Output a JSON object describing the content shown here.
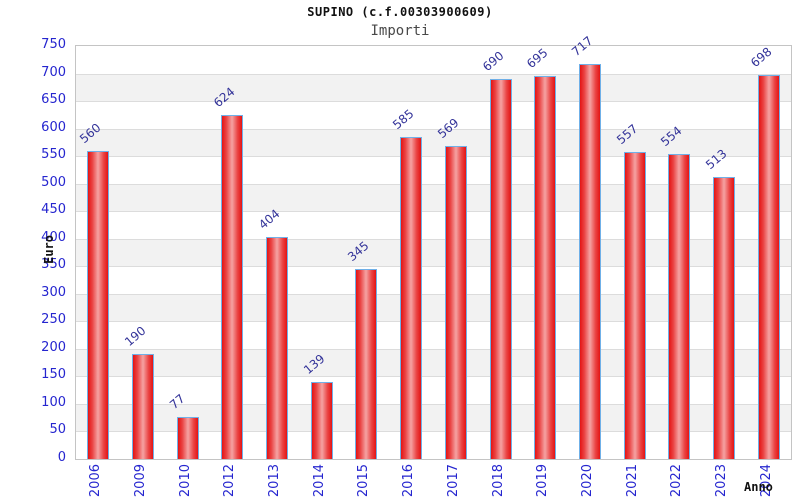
{
  "header": {
    "title": "SUPINO (c.f.00303900609)",
    "subtitle": "Importi"
  },
  "chart_data": {
    "type": "bar",
    "title": "SUPINO (c.f.00303900609)",
    "subtitle": "Importi",
    "categories": [
      "2006",
      "2009",
      "2010",
      "2012",
      "2013",
      "2014",
      "2015",
      "2016",
      "2017",
      "2018",
      "2019",
      "2020",
      "2021",
      "2022",
      "2023",
      "2024"
    ],
    "values": [
      560,
      190,
      77,
      624,
      404,
      139,
      345,
      585,
      569,
      690,
      695,
      717,
      557,
      554,
      513,
      698
    ],
    "xlabel": "Anno",
    "ylabel": "Euro",
    "ylim": [
      0,
      750
    ],
    "ytick_step": 50,
    "grid": true,
    "legend": "none",
    "colors": {
      "bar_fill_edge": "#e41414",
      "bar_fill_center": "#f5a3a3",
      "bar_border": "#6fb0e8",
      "value_label": "#333399",
      "axis_tick_text": "#2525cf",
      "band_alt": "#f2f2f2",
      "gridline": "#dcdcdc",
      "plot_border": "#c4c4c4"
    }
  }
}
